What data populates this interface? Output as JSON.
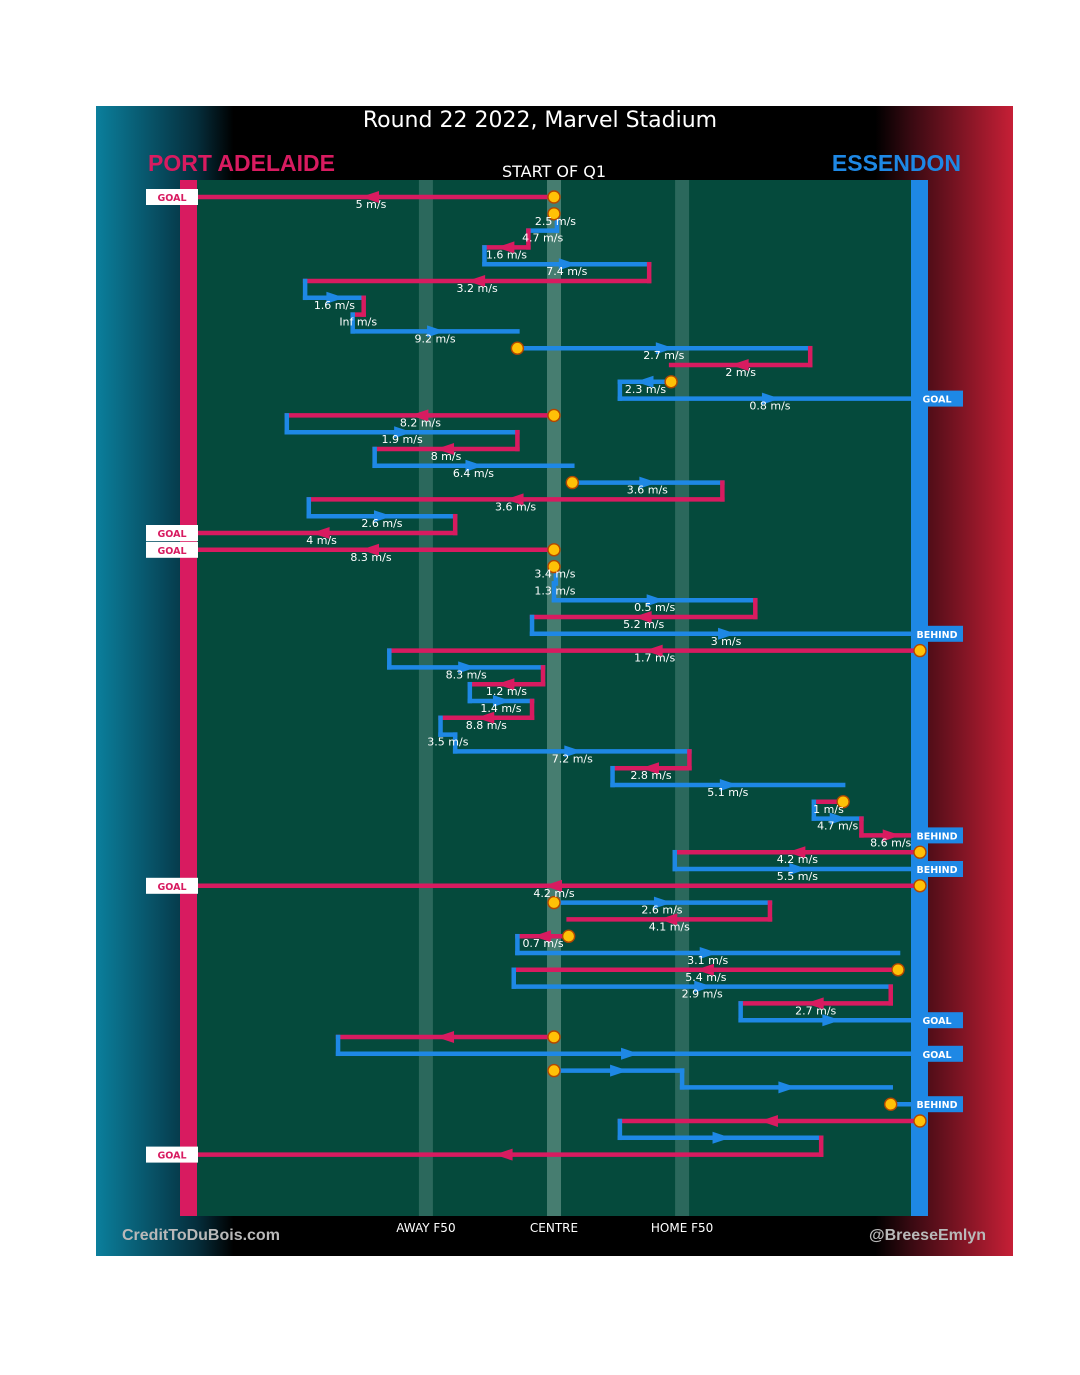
{
  "header": {
    "title": "Round 22 2022, Marvel Stadium",
    "home_team": "PORT ADELAIDE",
    "away_team": "ESSENDON",
    "quarter_label": "START OF Q1"
  },
  "footer": {
    "credit_left": "CreditToDuBois.com",
    "credit_right": "@BreeseEmlyn"
  },
  "colors": {
    "home": "#d81b60",
    "away": "#1e88e5",
    "field": "#054a3c",
    "stoppage": "#ffc107"
  },
  "chart_data": {
    "type": "line",
    "x_ticks": [
      {
        "label": "AWAY F50",
        "x": -0.35
      },
      {
        "label": "CENTRE",
        "x": 0
      },
      {
        "label": "HOME F50",
        "x": 0.35
      }
    ],
    "xlim": [
      -1,
      1
    ],
    "end_labels": [
      "GOAL",
      "BEHIND"
    ],
    "speed_labels": [
      "5 m/s",
      "2.5 m/s",
      "4.7 m/s",
      "1.6 m/s",
      "7.4 m/s",
      "3.2 m/s",
      "1.6 m/s",
      "Inf m/s",
      "9.2 m/s",
      "2.7 m/s",
      "2 m/s",
      "2.3 m/s",
      "0.8 m/s",
      "8.2 m/s",
      "1.9 m/s",
      "8 m/s",
      "6.4 m/s",
      "3.6 m/s",
      "3.6 m/s",
      "2.6 m/s",
      "4 m/s",
      "8.3 m/s",
      "3.4 m/s",
      "1.3 m/s",
      "0.5 m/s",
      "5.2 m/s",
      "3 m/s",
      "1.7 m/s",
      "8.3 m/s",
      "1.2 m/s",
      "1.4 m/s",
      "8.8 m/s",
      "3.5 m/s",
      "7.2 m/s",
      "2.8 m/s",
      "5.1 m/s",
      "1 m/s",
      "4.7 m/s",
      "8.6 m/s",
      "4.2 m/s",
      "5.5 m/s",
      "4.2 m/s",
      "2.6 m/s",
      "4.1 m/s",
      "0.7 m/s",
      "3.1 m/s",
      "5.4 m/s",
      "2.9 m/s",
      "2.7 m/s"
    ],
    "chains": [
      {
        "segments": [
          {
            "team": "home",
            "from": 0,
            "to": -1,
            "speed": 0,
            "end": "GOAL"
          }
        ]
      },
      {
        "segments": [
          {
            "team": "home",
            "from": 0,
            "to": 0.008
          },
          {
            "team": "away",
            "from": 0.008,
            "to": -0.07
          },
          {
            "team": "home",
            "from": -0.07,
            "to": -0.19
          },
          {
            "team": "away",
            "from": -0.19,
            "to": 0.26
          },
          {
            "team": "home",
            "from": 0.26,
            "to": -0.68
          },
          {
            "team": "away",
            "from": -0.68,
            "to": -0.52
          },
          {
            "team": "home",
            "from": -0.52,
            "to": -0.55
          },
          {
            "team": "away",
            "from": -0.55,
            "to": -0.1
          }
        ]
      },
      {
        "segments": [
          {
            "team": "away",
            "from": -0.1,
            "to": 0.7
          },
          {
            "team": "home",
            "from": 0.7,
            "to": 0.32
          }
        ]
      },
      {
        "segments": [
          {
            "team": "away",
            "from": 0.32,
            "to": 0.18
          },
          {
            "team": "away",
            "from": 0.18,
            "to": 1,
            "speed": 9.2,
            "end": "GOAL"
          }
        ]
      },
      {
        "segments": [
          {
            "team": "home",
            "from": 0,
            "to": -0.73
          },
          {
            "team": "away",
            "from": -0.73,
            "to": -0.1
          },
          {
            "team": "home",
            "from": -0.1,
            "to": -0.49
          },
          {
            "team": "away",
            "from": -0.49,
            "to": 0.05
          }
        ]
      },
      {
        "segments": [
          {
            "team": "away",
            "from": 0.05,
            "to": 0.46
          },
          {
            "team": "home",
            "from": 0.46,
            "to": -0.67
          },
          {
            "team": "away",
            "from": -0.67,
            "to": -0.27
          },
          {
            "team": "home",
            "from": -0.27,
            "to": -1,
            "speed": 6.4,
            "end": "GOAL"
          }
        ]
      },
      {
        "segments": [
          {
            "team": "home",
            "from": 0,
            "to": -1,
            "speed": 3.6,
            "end": "GOAL"
          }
        ]
      },
      {
        "segments": [
          {
            "team": "home",
            "from": 0,
            "to": 0.005
          },
          {
            "team": "away",
            "from": 0.005,
            "to": 0
          },
          {
            "team": "away",
            "from": 0,
            "to": 0.55
          },
          {
            "team": "home",
            "from": 0.55,
            "to": -0.06
          },
          {
            "team": "away",
            "from": -0.06,
            "to": 1,
            "speed": 4,
            "end": "BEHIND"
          }
        ]
      },
      {
        "segments": [
          {
            "team": "home",
            "from": 1,
            "to": -0.45
          },
          {
            "team": "away",
            "from": -0.45,
            "to": -0.03
          },
          {
            "team": "home",
            "from": -0.03,
            "to": -0.23
          },
          {
            "team": "away",
            "from": -0.23,
            "to": -0.06
          },
          {
            "team": "home",
            "from": -0.06,
            "to": -0.31
          },
          {
            "team": "away",
            "from": -0.31,
            "to": -0.27
          },
          {
            "team": "away",
            "from": -0.27,
            "to": 0.37
          },
          {
            "team": "home",
            "from": 0.37,
            "to": 0.16
          },
          {
            "team": "away",
            "from": 0.16,
            "to": 0.79
          }
        ]
      },
      {
        "segments": [
          {
            "team": "home",
            "from": 0.79,
            "to": 0.71
          },
          {
            "team": "away",
            "from": 0.71,
            "to": 0.84
          },
          {
            "team": "home",
            "from": 0.84,
            "to": 1,
            "speed": 1.4,
            "end": "BEHIND"
          }
        ]
      },
      {
        "segments": [
          {
            "team": "home",
            "from": 1,
            "to": 0.33
          },
          {
            "team": "away",
            "from": 0.33,
            "to": 1,
            "speed": 3.5,
            "end": "BEHIND"
          }
        ]
      },
      {
        "segments": [
          {
            "team": "home",
            "from": 1,
            "to": -1,
            "speed": 7.2,
            "end": "GOAL"
          }
        ]
      },
      {
        "segments": [
          {
            "team": "away",
            "from": 0,
            "to": 0.59
          },
          {
            "team": "home",
            "from": 0.59,
            "to": 0.04
          }
        ]
      },
      {
        "segments": [
          {
            "team": "home",
            "from": 0.04,
            "to": -0.1
          },
          {
            "team": "away",
            "from": -0.1,
            "to": 0.94
          }
        ]
      },
      {
        "segments": [
          {
            "team": "home",
            "from": 0.94,
            "to": -0.11
          },
          {
            "team": "away",
            "from": -0.11,
            "to": 0.92
          },
          {
            "team": "home",
            "from": 0.92,
            "to": 0.51
          },
          {
            "team": "away",
            "from": 0.51,
            "to": 1,
            "speed": 4.2,
            "end": "GOAL"
          }
        ]
      },
      {
        "segments": [
          {
            "team": "home",
            "from": 0,
            "to": -0.59
          },
          {
            "team": "away",
            "from": -0.59,
            "to": 1,
            "speed": 4.1,
            "end": "GOAL"
          }
        ]
      },
      {
        "segments": [
          {
            "team": "away",
            "from": 0,
            "to": 0.35
          },
          {
            "team": "away",
            "from": 0.35,
            "to": 0.92
          }
        ]
      },
      {
        "segments": [
          {
            "team": "away",
            "from": 0.92,
            "to": 1,
            "end": "BEHIND"
          }
        ]
      },
      {
        "segments": [
          {
            "team": "home",
            "from": 1,
            "to": 0.18
          },
          {
            "team": "away",
            "from": 0.18,
            "to": 0.73
          },
          {
            "team": "home",
            "from": 0.73,
            "to": -1,
            "speed": 2.7,
            "end": "GOAL"
          }
        ]
      }
    ]
  }
}
